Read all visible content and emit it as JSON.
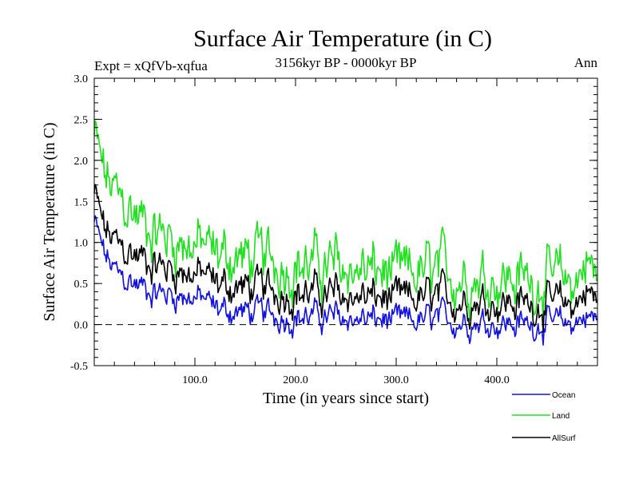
{
  "chart_data": {
    "type": "line",
    "title": "Surface Air Temperature (in C)",
    "subtitle_left": "Expt = xQfVb-xqfua",
    "subtitle_center": "3156kyr BP - 0000kyr BP",
    "subtitle_right": "Ann",
    "xlabel": "Time (in years since start)",
    "ylabel": "Surface Air Temperature (in C)",
    "xlim": [
      0,
      500
    ],
    "ylim": [
      -0.5,
      3.0
    ],
    "x_ticks": [
      100,
      200,
      300,
      400
    ],
    "x_tick_labels": [
      "100.0",
      "200.0",
      "300.0",
      "400.0"
    ],
    "y_ticks": [
      -0.5,
      0.0,
      0.5,
      1.0,
      1.5,
      2.0,
      2.5,
      3.0
    ],
    "y_tick_labels": [
      "-0.5",
      "0.0",
      "0.5",
      "1.0",
      "1.5",
      "2.0",
      "2.5",
      "3.0"
    ],
    "reference_line": {
      "y": 0.0,
      "style": "dashed"
    },
    "legend_position": "bottom-right, outside plot",
    "series": [
      {
        "name": "Ocean",
        "color": "#1010e0",
        "x": [
          0,
          10,
          20,
          30,
          40,
          50,
          60,
          70,
          80,
          90,
          100,
          110,
          120,
          130,
          140,
          150,
          160,
          170,
          180,
          190,
          200,
          210,
          220,
          230,
          240,
          250,
          260,
          270,
          280,
          290,
          300,
          310,
          320,
          330,
          340,
          350,
          360,
          370,
          380,
          390,
          400,
          410,
          420,
          430,
          440,
          450,
          460,
          470,
          480,
          490,
          500
        ],
        "values": [
          1.25,
          0.85,
          0.65,
          0.55,
          0.5,
          0.45,
          0.4,
          0.38,
          0.37,
          0.35,
          0.33,
          0.3,
          0.2,
          0.18,
          0.16,
          0.15,
          0.14,
          0.12,
          0.12,
          0.1,
          0.1,
          0.09,
          0.1,
          0.09,
          0.08,
          0.08,
          0.07,
          0.06,
          0.06,
          0.05,
          0.02,
          0.04,
          0.04,
          0.05,
          0.06,
          0.06,
          0.05,
          0.05,
          0.04,
          0.04,
          0.02,
          0.02,
          0.0,
          0.0,
          0.02,
          0.02,
          0.0,
          0.0,
          0.05,
          0.12,
          0.05
        ]
      },
      {
        "name": "Land",
        "color": "#20e020",
        "x": [
          0,
          10,
          20,
          30,
          40,
          50,
          60,
          70,
          80,
          90,
          100,
          110,
          120,
          130,
          140,
          150,
          160,
          170,
          180,
          190,
          200,
          210,
          220,
          230,
          240,
          250,
          260,
          270,
          280,
          290,
          300,
          310,
          320,
          330,
          340,
          350,
          360,
          370,
          380,
          390,
          400,
          410,
          420,
          430,
          440,
          450,
          460,
          470,
          480,
          490,
          500
        ],
        "values": [
          2.3,
          1.8,
          1.6,
          1.45,
          1.35,
          1.25,
          1.15,
          1.1,
          1.05,
          1.0,
          0.98,
          0.95,
          0.85,
          0.85,
          0.82,
          0.8,
          0.8,
          0.78,
          0.78,
          0.75,
          0.75,
          0.72,
          0.72,
          0.7,
          0.7,
          0.68,
          0.68,
          0.65,
          0.65,
          0.62,
          0.55,
          0.6,
          0.62,
          0.62,
          0.63,
          0.63,
          0.62,
          0.62,
          0.6,
          0.6,
          0.58,
          0.58,
          0.55,
          0.55,
          0.55,
          0.55,
          0.52,
          0.52,
          0.55,
          0.85,
          0.5
        ]
      },
      {
        "name": "AllSurf",
        "color": "#000000",
        "x": [
          0,
          10,
          20,
          30,
          40,
          50,
          60,
          70,
          80,
          90,
          100,
          110,
          120,
          130,
          140,
          150,
          160,
          170,
          180,
          190,
          200,
          210,
          220,
          230,
          240,
          250,
          260,
          270,
          280,
          290,
          300,
          310,
          320,
          330,
          340,
          350,
          360,
          370,
          380,
          390,
          400,
          410,
          420,
          430,
          440,
          450,
          460,
          470,
          480,
          490,
          500
        ],
        "values": [
          1.6,
          1.15,
          1.0,
          0.9,
          0.85,
          0.8,
          0.75,
          0.7,
          0.68,
          0.65,
          0.62,
          0.6,
          0.5,
          0.48,
          0.46,
          0.45,
          0.44,
          0.42,
          0.42,
          0.4,
          0.4,
          0.38,
          0.38,
          0.36,
          0.36,
          0.35,
          0.35,
          0.33,
          0.33,
          0.31,
          0.28,
          0.3,
          0.31,
          0.32,
          0.32,
          0.32,
          0.31,
          0.31,
          0.3,
          0.3,
          0.28,
          0.28,
          0.25,
          0.25,
          0.26,
          0.26,
          0.24,
          0.24,
          0.28,
          0.45,
          0.25
        ]
      }
    ]
  }
}
